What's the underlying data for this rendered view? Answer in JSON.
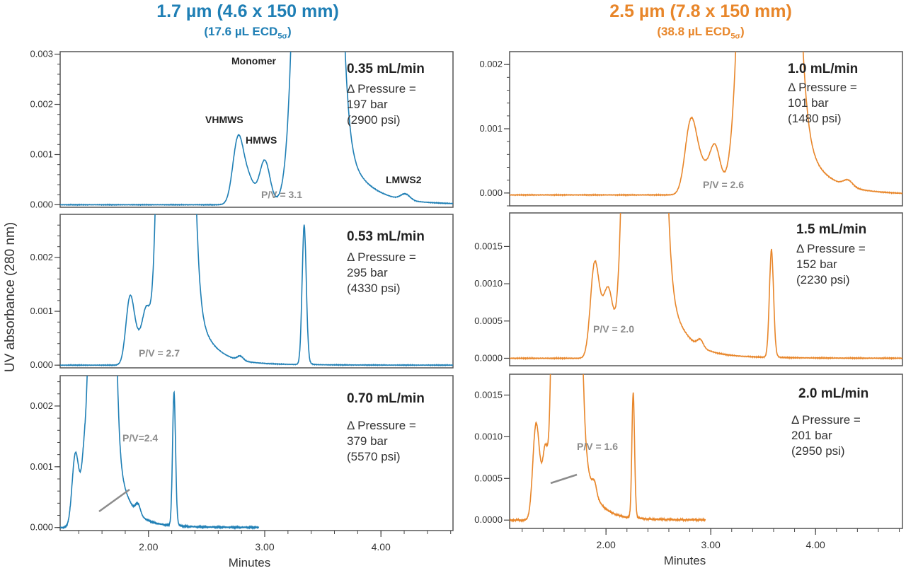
{
  "columns": [
    {
      "title": "1.7 µm (4.6 x 150 mm)",
      "subtitle_prefix": "(17.6 µL ECD",
      "subtitle_sub": "5σ",
      "subtitle_suffix": ")",
      "color": "#1f7fb5"
    },
    {
      "title": "2.5 µm (7.8 x 150 mm)",
      "subtitle_prefix": "(38.8 µL ECD",
      "subtitle_sub": "5σ",
      "subtitle_suffix": ")",
      "color": "#e8862a"
    }
  ],
  "chart_data": [
    {
      "type": "line",
      "id": "left-top",
      "column": 0,
      "flow": "0.35 mL/min",
      "pressure_lines": [
        "Δ Pressure =",
        "197 bar",
        "(2900 psi)"
      ],
      "pv_label": "P/V = 3.1",
      "xlim": [
        1.24,
        4.62
      ],
      "ylim": [
        -5e-05,
        0.00305
      ],
      "yticks": [
        0.0,
        0.001,
        0.002,
        0.003
      ],
      "ytick_labels": [
        "0.000",
        "0.001",
        "0.002",
        "0.003"
      ],
      "yminor": 0.0002,
      "trace_end": 4.62,
      "peaks": [
        {
          "t": 2.77,
          "h": 0.00128,
          "w": 0.045,
          "label": "VHMWS"
        },
        {
          "t": 2.86,
          "h": 0.0005,
          "w": 0.05
        },
        {
          "t": 3.0,
          "h": 0.00088,
          "w": 0.045,
          "label": "HMWS"
        },
        {
          "t": 3.45,
          "h": 0.04,
          "w": 0.1,
          "tail": 0.18,
          "label": "Monomer"
        },
        {
          "t": 4.21,
          "h": 0.00012,
          "w": 0.04,
          "label": "LMWS2"
        }
      ],
      "baseline": 0.0
    },
    {
      "type": "line",
      "id": "left-mid",
      "column": 0,
      "flow": "0.53 mL/min",
      "pressure_lines": [
        "Δ Pressure =",
        "295 bar",
        "(4330 psi)"
      ],
      "pv_label": "P/V = 2.7",
      "xlim": [
        1.24,
        4.62
      ],
      "ylim": [
        -5e-05,
        0.0028
      ],
      "yticks": [
        0.0,
        0.001,
        0.002
      ],
      "ytick_labels": [
        "0.000",
        "0.001",
        "0.002"
      ],
      "yminor": 0.0002,
      "trace_end": 4.62,
      "peaks": [
        {
          "t": 1.84,
          "h": 0.0012,
          "w": 0.035
        },
        {
          "t": 1.91,
          "h": 0.00042,
          "w": 0.04
        },
        {
          "t": 1.98,
          "h": 0.00085,
          "w": 0.033
        },
        {
          "t": 2.23,
          "h": 0.04,
          "w": 0.075,
          "tail": 0.13
        },
        {
          "t": 2.79,
          "h": 8e-05,
          "w": 0.025
        },
        {
          "t": 3.34,
          "h": 0.0026,
          "w": 0.018,
          "tail": 0.02
        }
      ],
      "baseline": 0.0
    },
    {
      "type": "line",
      "id": "left-bottom",
      "column": 0,
      "flow": "0.70 mL/min",
      "pressure_lines": [
        "Δ Pressure =",
        "379 bar",
        "(5570 psi)"
      ],
      "pv_label": "P/V=2.4",
      "pv_leader": true,
      "xlim": [
        1.24,
        4.62
      ],
      "xticks": [
        2.0,
        3.0,
        4.0
      ],
      "xtick_labels": [
        "2.00",
        "3.00",
        "4.00"
      ],
      "xminor": 0.2,
      "xlabel": "Minutes",
      "ylim": [
        -5e-05,
        0.0025
      ],
      "yticks": [
        0.0,
        0.001,
        0.002
      ],
      "ytick_labels": [
        "0.000",
        "0.001",
        "0.002"
      ],
      "yminor": 0.0002,
      "trace_end": 2.95,
      "peaks": [
        {
          "t": 1.37,
          "h": 0.00115,
          "w": 0.028
        },
        {
          "t": 1.42,
          "h": 0.0003,
          "w": 0.03
        },
        {
          "t": 1.45,
          "h": 0.00078,
          "w": 0.023
        },
        {
          "t": 1.6,
          "h": 0.04,
          "w": 0.052,
          "tail": 0.1
        },
        {
          "t": 1.91,
          "h": 0.00016,
          "w": 0.02
        },
        {
          "t": 2.22,
          "h": 0.0022,
          "w": 0.013,
          "tail": 0.015
        }
      ],
      "baseline": 0.0
    },
    {
      "type": "line",
      "id": "right-top",
      "column": 1,
      "flow": "1.0 mL/min",
      "pressure_lines": [
        "Δ Pressure =",
        "101 bar",
        "(1480 psi)"
      ],
      "pv_label": "P/V = 2.6",
      "xlim": [
        1.08,
        4.83
      ],
      "ylim": [
        -0.0002,
        0.0022
      ],
      "yticks": [
        0.0,
        0.001,
        0.002
      ],
      "ytick_labels": [
        "0.000",
        "0.001",
        "0.002"
      ],
      "yminor": 0.0002,
      "trace_end": 4.83,
      "peaks": [
        {
          "t": 2.81,
          "h": 0.00112,
          "w": 0.055
        },
        {
          "t": 2.92,
          "h": 0.0004,
          "w": 0.06
        },
        {
          "t": 3.04,
          "h": 0.00072,
          "w": 0.05
        },
        {
          "t": 3.55,
          "h": 0.04,
          "w": 0.13,
          "tail": 0.2
        },
        {
          "t": 4.31,
          "h": 0.0001,
          "w": 0.045
        }
      ],
      "baseline": -3e-05
    },
    {
      "type": "line",
      "id": "right-mid",
      "column": 1,
      "flow": "1.5 mL/min",
      "pressure_lines": [
        "Δ Pressure =",
        "152 bar",
        "(2230 psi)"
      ],
      "pv_label": "P/V = 2.0",
      "xlim": [
        1.08,
        4.83
      ],
      "ylim": [
        -0.0001,
        0.00195
      ],
      "yticks": [
        0.0,
        0.0005,
        0.001,
        0.0015
      ],
      "ytick_labels": [
        "0.0000",
        "0.0005",
        "0.0010",
        "0.0015"
      ],
      "trace_end": 4.83,
      "peaks": [
        {
          "t": 1.89,
          "h": 0.0012,
          "w": 0.04
        },
        {
          "t": 1.97,
          "h": 0.00045,
          "w": 0.045
        },
        {
          "t": 2.03,
          "h": 0.0007,
          "w": 0.04
        },
        {
          "t": 2.36,
          "h": 0.04,
          "w": 0.09,
          "tail": 0.15
        },
        {
          "t": 2.9,
          "h": 0.0001,
          "w": 0.028
        },
        {
          "t": 3.58,
          "h": 0.00145,
          "w": 0.02,
          "tail": 0.02
        }
      ],
      "baseline": 0.0
    },
    {
      "type": "line",
      "id": "right-bottom",
      "column": 1,
      "flow": "2.0 mL/min",
      "pressure_lines": [
        "Δ Pressure =",
        "201 bar",
        "(2950 psi)"
      ],
      "pv_label": "P/V = 1.6",
      "pv_leader": true,
      "xlim": [
        1.08,
        4.83
      ],
      "xticks": [
        2.0,
        3.0,
        4.0
      ],
      "xtick_labels": [
        "2.00",
        "3.00",
        "4.00"
      ],
      "xminor": 0.2,
      "xlabel": "Minutes",
      "ylim": [
        -0.0001,
        0.00175
      ],
      "yticks": [
        0.0,
        0.0005,
        0.001,
        0.0015
      ],
      "ytick_labels": [
        "0.0000",
        "0.0005",
        "0.0010",
        "0.0015"
      ],
      "trace_end": 2.95,
      "peaks": [
        {
          "t": 1.33,
          "h": 0.00108,
          "w": 0.03
        },
        {
          "t": 1.38,
          "h": 0.0003,
          "w": 0.03
        },
        {
          "t": 1.42,
          "h": 0.00062,
          "w": 0.022
        },
        {
          "t": 1.62,
          "h": 0.04,
          "w": 0.06,
          "tail": 0.1
        },
        {
          "t": 1.89,
          "h": 0.00014,
          "w": 0.02
        },
        {
          "t": 2.26,
          "h": 0.0015,
          "w": 0.013,
          "tail": 0.015
        }
      ],
      "baseline": 0.0
    }
  ],
  "ylabel": "UV absorbance (280 nm)"
}
